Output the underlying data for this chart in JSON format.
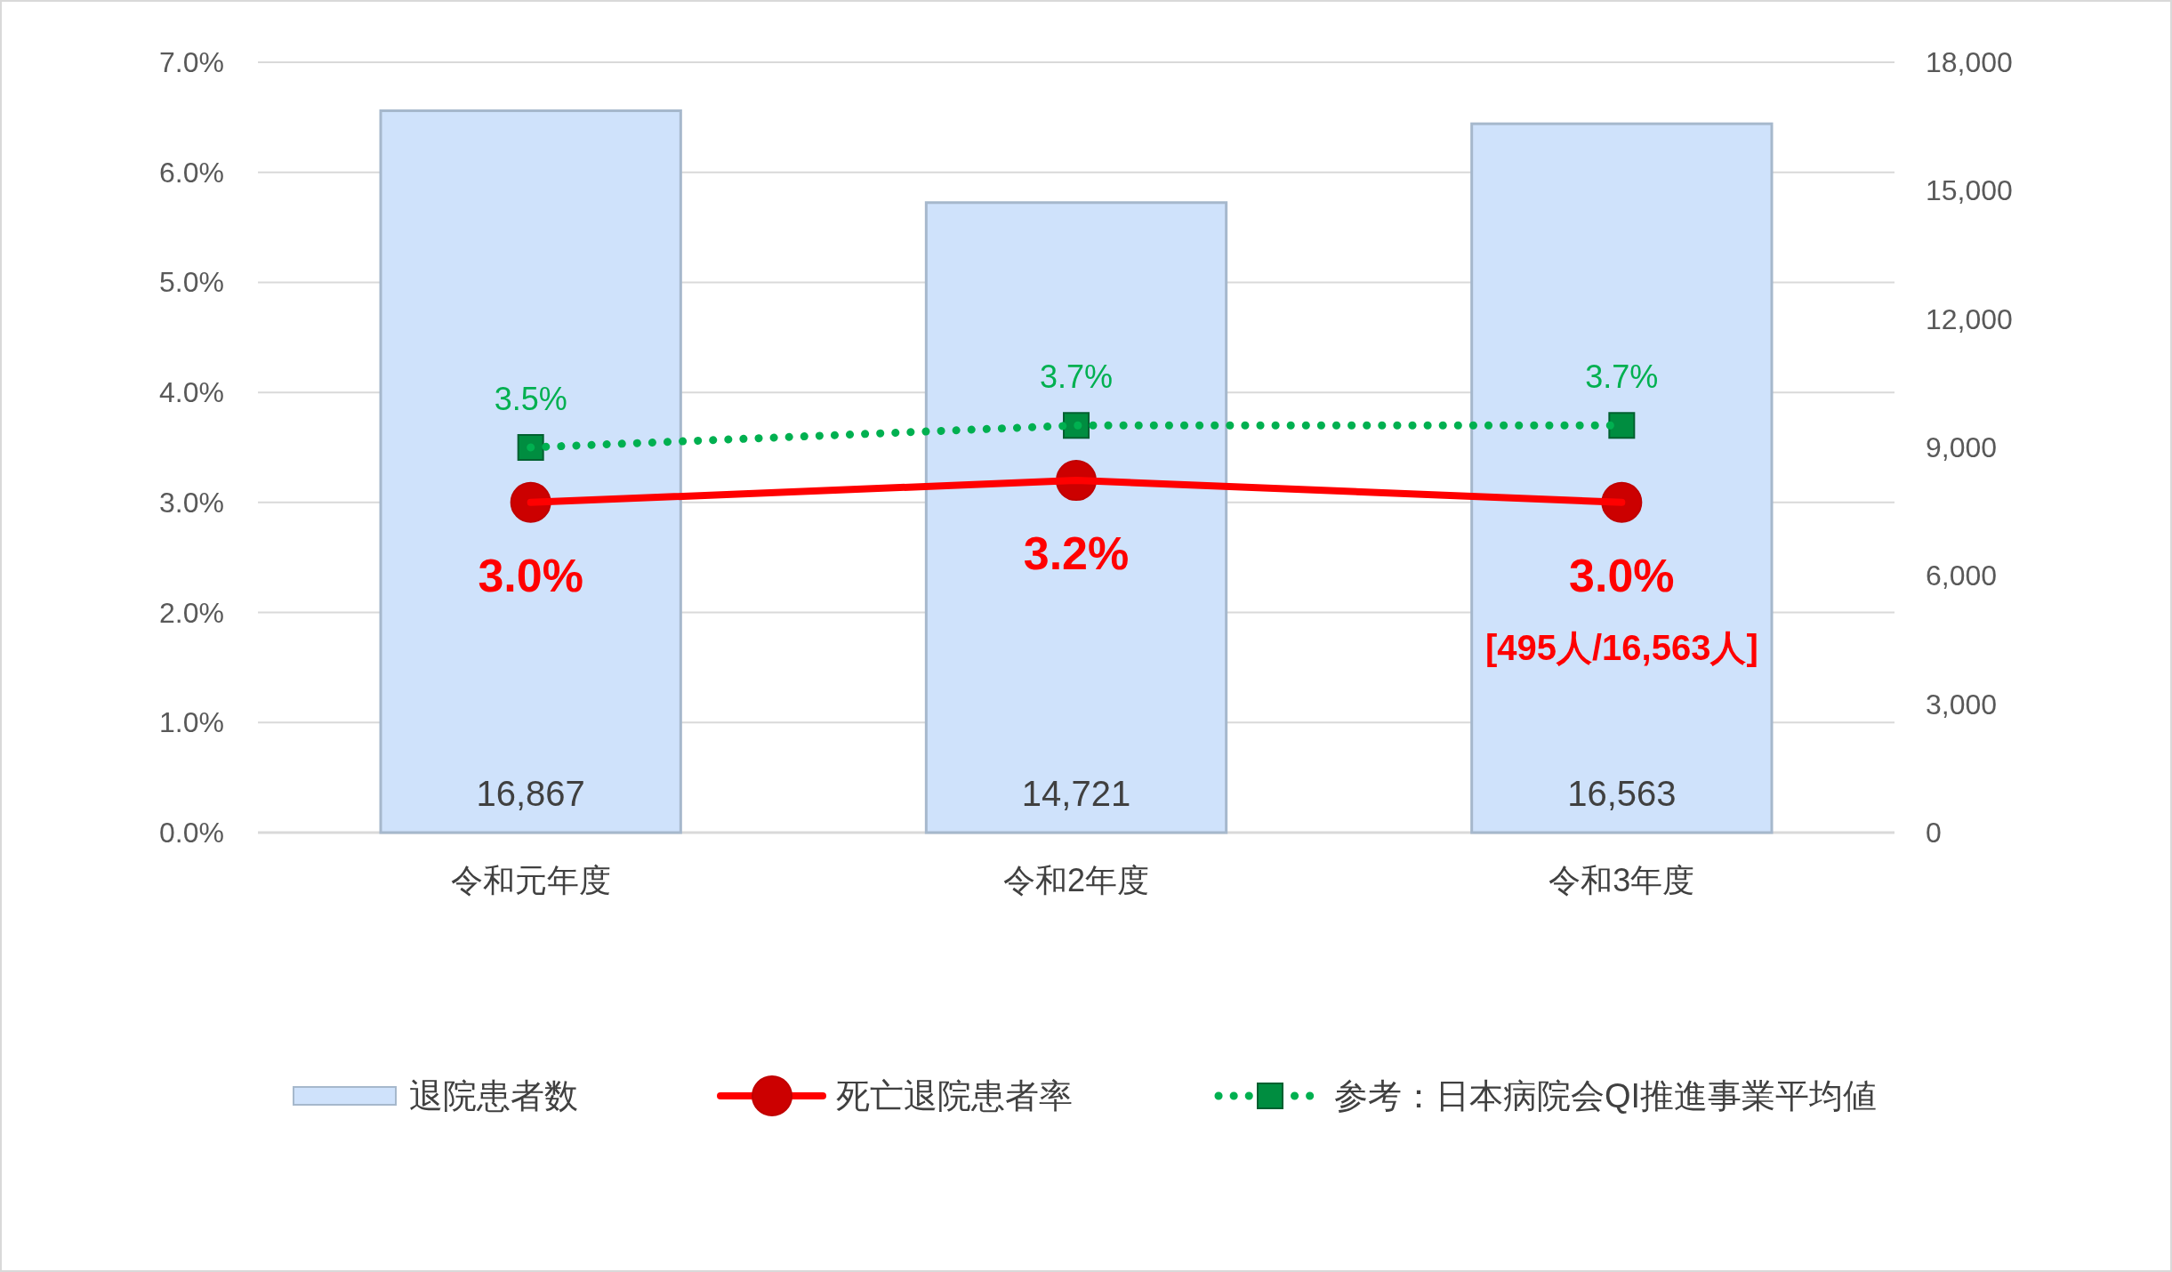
{
  "chart_data": {
    "type": "bar",
    "categories": [
      "令和元年度",
      "令和2年度",
      "令和3年度"
    ],
    "series": [
      {
        "name": "退院患者数",
        "axis": "y2",
        "color": "#cfe2fb",
        "values": [
          16867,
          14721,
          16563
        ],
        "value_labels": [
          "16,867",
          "14,721",
          "16,563"
        ]
      },
      {
        "name": "死亡退院患者率",
        "type": "line",
        "color": "#ff0000",
        "marker": "circle",
        "line_style": "solid",
        "values": [
          3.0,
          3.2,
          3.0
        ],
        "value_labels": [
          "3.0%",
          "3.2%",
          "3.0%"
        ]
      },
      {
        "name": "参考：日本病院会QI推進事業平均値",
        "type": "line",
        "color": "#00b050",
        "marker": "square",
        "line_style": "dotted",
        "values": [
          3.5,
          3.7,
          3.7
        ],
        "value_labels": [
          "3.5%",
          "3.7%",
          "3.7%"
        ]
      }
    ],
    "ylim": [
      0,
      7
    ],
    "yticks": [
      {
        "value": 0,
        "label": "0.0%"
      },
      {
        "value": 1,
        "label": "1.0%"
      },
      {
        "value": 2,
        "label": "2.0%"
      },
      {
        "value": 3,
        "label": "3.0%"
      },
      {
        "value": 4,
        "label": "4.0%"
      },
      {
        "value": 5,
        "label": "5.0%"
      },
      {
        "value": 6,
        "label": "6.0%"
      },
      {
        "value": 7,
        "label": "7.0%"
      }
    ],
    "y2lim": [
      0,
      18000
    ],
    "y2ticks": [
      {
        "value": 0,
        "label": "0"
      },
      {
        "value": 3000,
        "label": "3,000"
      },
      {
        "value": 6000,
        "label": "6,000"
      },
      {
        "value": 9000,
        "label": "9,000"
      },
      {
        "value": 12000,
        "label": "12,000"
      },
      {
        "value": 15000,
        "label": "15,000"
      },
      {
        "value": 18000,
        "label": "18,000"
      }
    ],
    "annotations": [
      "[495人/16,563人]"
    ],
    "grid": "y",
    "legend": "bottom"
  }
}
